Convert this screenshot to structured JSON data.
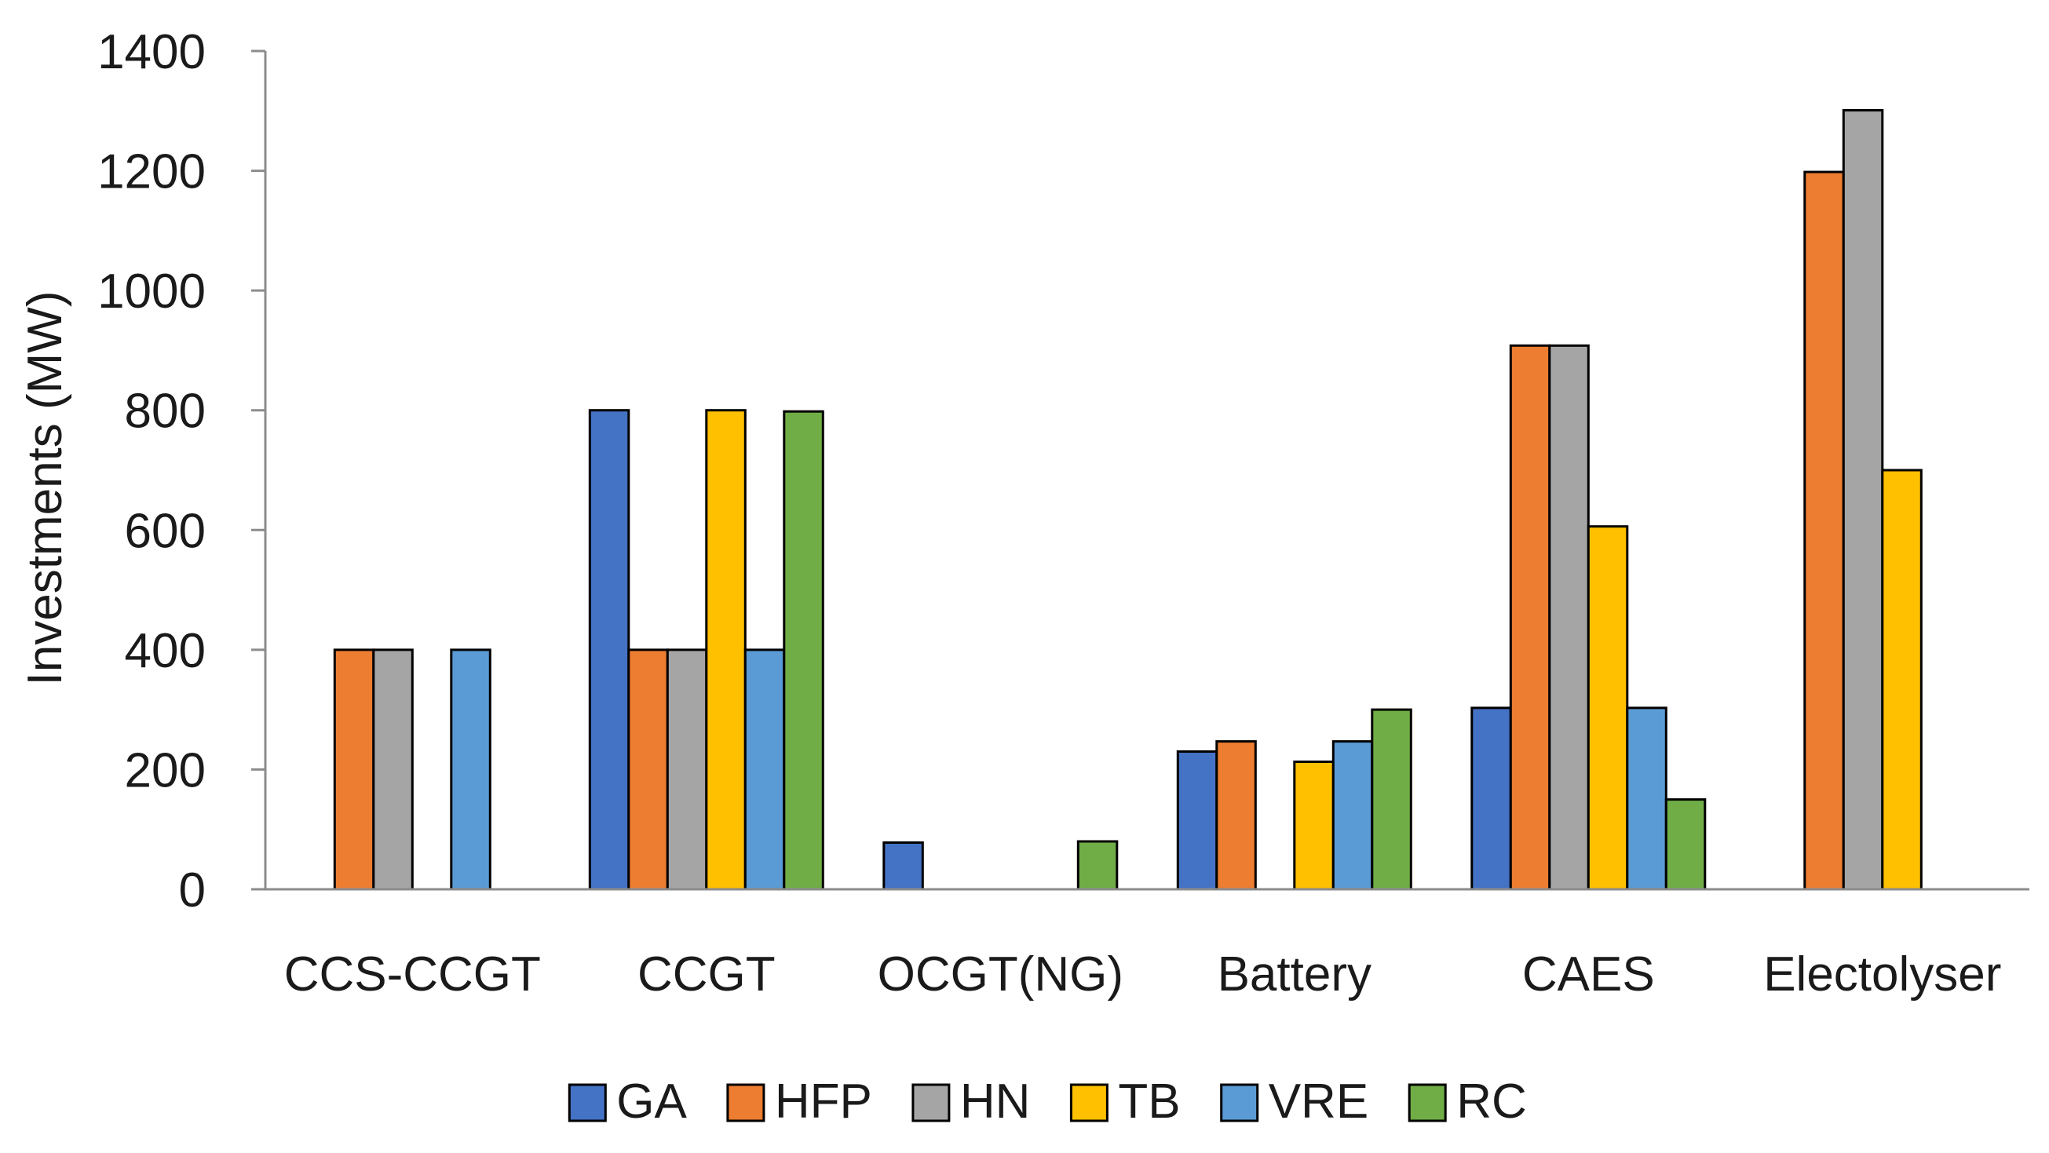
{
  "chart_data": {
    "type": "bar",
    "title": "",
    "xlabel": "",
    "ylabel": "Investments (MW)",
    "ylim": [
      0,
      1400
    ],
    "yticks": [
      0,
      200,
      400,
      600,
      800,
      1000,
      1200,
      1400
    ],
    "grid": false,
    "legend_position": "bottom",
    "categories": [
      "CCS-CCGT",
      "CCGT",
      "OCGT(NG)",
      "Battery",
      "CAES",
      "Electolyser"
    ],
    "series": [
      {
        "name": "GA",
        "color": "#4472C4",
        "values": [
          0,
          800,
          78,
          230,
          303,
          0
        ]
      },
      {
        "name": "HFP",
        "color": "#ED7D31",
        "values": [
          400,
          400,
          0,
          247,
          908,
          1198
        ]
      },
      {
        "name": "HN",
        "color": "#A5A5A5",
        "values": [
          400,
          400,
          0,
          0,
          908,
          1301
        ]
      },
      {
        "name": "TB",
        "color": "#FFC000",
        "values": [
          0,
          800,
          0,
          213,
          606,
          700
        ]
      },
      {
        "name": "VRE",
        "color": "#5B9BD5",
        "values": [
          400,
          400,
          0,
          247,
          303,
          0
        ]
      },
      {
        "name": "RC",
        "color": "#70AD47",
        "values": [
          0,
          798,
          80,
          300,
          150,
          0
        ]
      }
    ]
  }
}
